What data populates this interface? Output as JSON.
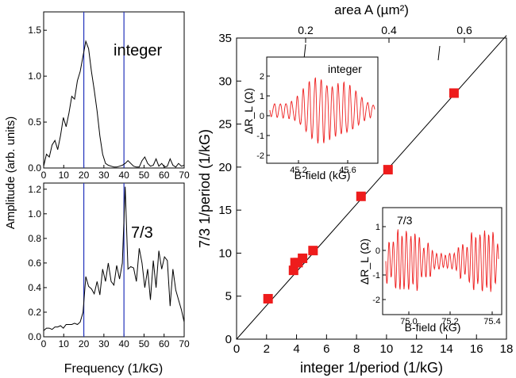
{
  "chart_data": [
    {
      "id": "fft_integer",
      "type": "line",
      "panel_label": "integer",
      "xlim": [
        0,
        70
      ],
      "ylim": [
        0,
        1.7
      ],
      "x_ticks": [
        0,
        10,
        20,
        30,
        40,
        50,
        60,
        70
      ],
      "y_ticks": [
        0.0,
        0.5,
        1.0,
        1.5
      ],
      "y_tick_labels": [
        "0.0",
        "0.5",
        "1.0",
        "1.5"
      ],
      "vlines": [
        20,
        40
      ],
      "series": [
        {
          "x": [
            0,
            1.4,
            2.8,
            4.2,
            5.6,
            7,
            8.4,
            9.8,
            11.2,
            12.6,
            14,
            15.4,
            16.8,
            18.2,
            19.6,
            21,
            22.4,
            23.8,
            25.2,
            26.6,
            28,
            29.4,
            30.8,
            32.2,
            33.6,
            35,
            36.4,
            37.8,
            39.2,
            40.6,
            42,
            43.4,
            44.8,
            46.2,
            47.6,
            49,
            50.4,
            51.8,
            53.2,
            54.6,
            56,
            57.4,
            58.8,
            60.2,
            61.6,
            63,
            64.4,
            65.8,
            67.2,
            68.6,
            70
          ],
          "values": [
            0.02,
            0.15,
            0.12,
            0.25,
            0.3,
            0.2,
            0.35,
            0.55,
            0.45,
            0.6,
            0.78,
            0.75,
            0.95,
            1.05,
            1.22,
            1.38,
            1.3,
            1.05,
            0.85,
            0.62,
            0.35,
            0.15,
            0.05,
            0.03,
            0.02,
            0.01,
            0.01,
            0.02,
            0.03,
            0.05,
            0.08,
            0.05,
            0.02,
            0.01,
            0.01,
            0.08,
            0.12,
            0.05,
            0.02,
            0.03,
            0.1,
            0.02,
            0.05,
            0.01,
            0.02,
            0.1,
            0.03,
            0.01,
            0.05,
            0.02,
            0.03
          ]
        }
      ]
    },
    {
      "id": "fft_73",
      "type": "line",
      "panel_label": "7/3",
      "xlim": [
        0,
        70
      ],
      "ylim": [
        0,
        1.25
      ],
      "x_ticks": [
        0,
        10,
        20,
        30,
        40,
        50,
        60,
        70
      ],
      "y_ticks": [
        0.0,
        0.2,
        0.4,
        0.6,
        0.8,
        1.0,
        1.2
      ],
      "y_tick_labels": [
        "0.0",
        "0.2",
        "0.4",
        "0.6",
        "0.8",
        "1.0",
        "1.2"
      ],
      "vlines": [
        20,
        40
      ],
      "series": [
        {
          "x": [
            0,
            1.4,
            2.8,
            4.2,
            5.6,
            7,
            8.4,
            9.8,
            11.2,
            12.6,
            14,
            15.4,
            16.8,
            18.2,
            19.6,
            21,
            22.4,
            23.8,
            25.2,
            26.6,
            28,
            29.4,
            30.8,
            32.2,
            33.6,
            35,
            36.4,
            37.8,
            39.2,
            40.6,
            42,
            43.4,
            44.8,
            46.2,
            47.6,
            49,
            50.4,
            51.8,
            53.2,
            54.6,
            56,
            57.4,
            58.8,
            60.2,
            61.6,
            63,
            64.4,
            65.8,
            67.2,
            68.6,
            70
          ],
          "values": [
            0.05,
            0.07,
            0.07,
            0.06,
            0.08,
            0.08,
            0.09,
            0.07,
            0.1,
            0.1,
            0.1,
            0.11,
            0.1,
            0.12,
            0.2,
            0.49,
            0.41,
            0.39,
            0.35,
            0.45,
            0.34,
            0.55,
            0.45,
            0.6,
            0.45,
            0.42,
            0.58,
            0.47,
            0.6,
            1.22,
            0.55,
            0.57,
            0.56,
            0.45,
            0.72,
            0.6,
            0.4,
            0.55,
            0.3,
            0.62,
            0.4,
            0.7,
            0.55,
            0.65,
            0.62,
            0.25,
            0.55,
            0.38,
            0.3,
            0.22,
            0.12
          ]
        }
      ]
    },
    {
      "id": "main_scatter",
      "type": "scatter",
      "xlabel": "integer 1/period (1/kG)",
      "ylabel": "7/3 1/period (1/kG)",
      "xlim": [
        0,
        18
      ],
      "ylim": [
        0,
        35
      ],
      "x_ticks": [
        0,
        2,
        4,
        6,
        8,
        10,
        12,
        14,
        16,
        18
      ],
      "y_ticks": [
        0,
        5,
        10,
        15,
        20,
        25,
        30,
        35
      ],
      "top_axis_label": "area A (µm²)",
      "top_ticks": [
        "0.2",
        "0.4",
        "0.6"
      ],
      "fit_line": {
        "x": [
          0,
          18
        ],
        "y": [
          0,
          35.3
        ]
      },
      "marker_color": "#ee1c1c",
      "series": [
        {
          "x": [
            2.1,
            3.8,
            3.9,
            4.1,
            4.4,
            5.1,
            8.3,
            10.1,
            14.5
          ],
          "y": [
            4.7,
            8.0,
            8.9,
            8.9,
            9.4,
            10.3,
            16.6,
            19.7,
            28.6
          ]
        }
      ]
    },
    {
      "id": "inset_integer",
      "type": "line",
      "panel_label": "integer",
      "xlabel": "B-field (kG)",
      "ylabel": "ΔR_L (Ω)",
      "x_tick_labels": [
        "45.2",
        "45.6"
      ],
      "y_tick_labels": [
        "2",
        "1",
        "0",
        "-1",
        "-2"
      ],
      "line_color": "#ee1c1c"
    },
    {
      "id": "inset_73",
      "type": "line",
      "panel_label": "7/3",
      "xlabel": "B-field (kG)",
      "ylabel": "ΔR_L (Ω)",
      "x_tick_labels": [
        "75.0",
        "75.2",
        "75.4"
      ],
      "y_tick_labels": [
        "1",
        "0",
        "-1",
        "-2"
      ],
      "line_color": "#ee1c1c"
    }
  ],
  "left_common": {
    "ylabel": "Amplitude (arb. units)",
    "xlabel": "Frequency (1/kG)"
  }
}
